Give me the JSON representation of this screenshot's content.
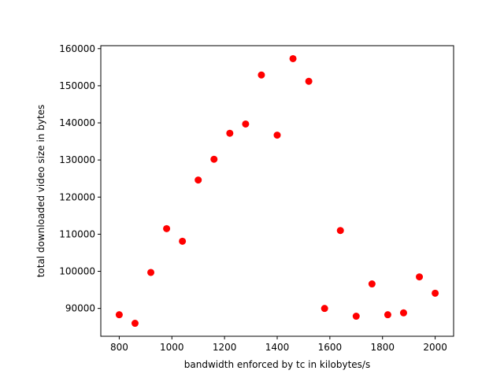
{
  "chart_data": {
    "type": "scatter",
    "xlabel": "bandwidth enforced by tc in kilobytes/s",
    "ylabel": "total downloaded video size in bytes",
    "xlim": [
      730,
      2070
    ],
    "ylim": [
      82500,
      160800
    ],
    "x_ticks": [
      800,
      1000,
      1200,
      1400,
      1600,
      1800,
      2000
    ],
    "y_ticks": [
      90000,
      100000,
      110000,
      120000,
      130000,
      140000,
      150000,
      160000
    ],
    "x_tick_labels": [
      "800",
      "1000",
      "1200",
      "1400",
      "1600",
      "1800",
      "2000"
    ],
    "y_tick_labels": [
      "90000",
      "100000",
      "110000",
      "120000",
      "130000",
      "140000",
      "150000",
      "160000"
    ],
    "grid": false,
    "marker_color": "#ff0000",
    "points": [
      {
        "x": 800,
        "y": 88300
      },
      {
        "x": 860,
        "y": 86000
      },
      {
        "x": 920,
        "y": 99700
      },
      {
        "x": 980,
        "y": 111500
      },
      {
        "x": 1040,
        "y": 108100
      },
      {
        "x": 1100,
        "y": 124600
      },
      {
        "x": 1160,
        "y": 130200
      },
      {
        "x": 1220,
        "y": 137200
      },
      {
        "x": 1280,
        "y": 139700
      },
      {
        "x": 1340,
        "y": 152900
      },
      {
        "x": 1400,
        "y": 136700
      },
      {
        "x": 1460,
        "y": 157300
      },
      {
        "x": 1520,
        "y": 151200
      },
      {
        "x": 1580,
        "y": 90000
      },
      {
        "x": 1640,
        "y": 111000
      },
      {
        "x": 1700,
        "y": 87900
      },
      {
        "x": 1760,
        "y": 96600
      },
      {
        "x": 1820,
        "y": 88300
      },
      {
        "x": 1880,
        "y": 88800
      },
      {
        "x": 1940,
        "y": 98500
      },
      {
        "x": 2000,
        "y": 94100
      }
    ]
  }
}
